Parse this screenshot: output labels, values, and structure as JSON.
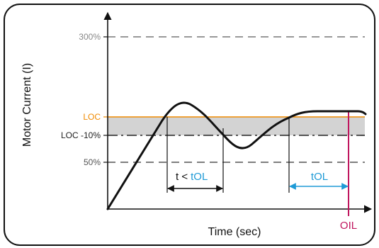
{
  "axes": {
    "ylabel": "Motor Current (I)",
    "xlabel": "Time (sec)"
  },
  "levels": [
    {
      "key": "p300",
      "label": "300%",
      "color": "#888888"
    },
    {
      "key": "loc",
      "label": "LOC",
      "color": "#f08a00"
    },
    {
      "key": "loc10",
      "label": "LOC -10%",
      "color": "#222222"
    },
    {
      "key": "p50",
      "label": "50%",
      "color": "#555555"
    }
  ],
  "annotations": {
    "t_lt": "t <",
    "tol_1": "tOL",
    "tol_2": "tOL",
    "oil": "OIL"
  },
  "colors": {
    "frame": "#111111",
    "band": "#d3d3d3",
    "tol_blue": "#1e9ad6",
    "oil_magenta": "#c0155e",
    "curve": "#111111"
  }
}
